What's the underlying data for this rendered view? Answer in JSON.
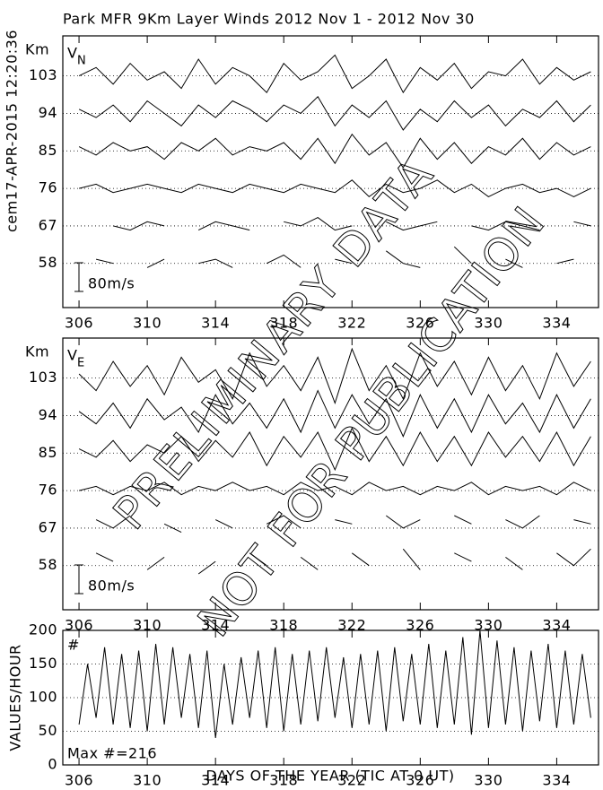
{
  "watermark": [
    "PRELIMINARY DATA",
    "NOT FOR PUBLICATION"
  ],
  "chart_data": [
    {
      "type": "line",
      "title": "Park MFR 9Km Layer Winds 2012 Nov  1 - 2012 Nov 30",
      "annotation": "cem17-APR-2015 12:20:36",
      "ylabel": "Km",
      "label": "V",
      "subscript": "N",
      "scale_label": "80m/s",
      "xlim": [
        305.05,
        336.45
      ],
      "xticks": [
        306,
        310,
        314,
        318,
        322,
        326,
        330,
        334
      ],
      "ylim": [
        47.4,
        112.6
      ],
      "yticks": [
        58,
        67,
        76,
        85,
        94,
        103
      ],
      "grid": true,
      "x": [
        306,
        307,
        308,
        309,
        310,
        311,
        312,
        313,
        314,
        315,
        316,
        317,
        318,
        319,
        320,
        321,
        322,
        323,
        324,
        325,
        326,
        327,
        328,
        329,
        330,
        331,
        332,
        333,
        334,
        335,
        336
      ],
      "series": [
        {
          "color": "#000000",
          "values": [
            103,
            105,
            101,
            106,
            102,
            104,
            100,
            107,
            101,
            105,
            103,
            99,
            106,
            102,
            104,
            108,
            100,
            103,
            107,
            99,
            105,
            102,
            106,
            100,
            104,
            103,
            107,
            101,
            105,
            102,
            104
          ]
        },
        {
          "color": "#000000",
          "values": [
            95,
            93,
            96,
            92,
            97,
            94,
            91,
            96,
            93,
            97,
            95,
            92,
            96,
            94,
            98,
            91,
            96,
            93,
            97,
            90,
            95,
            92,
            97,
            93,
            96,
            91,
            95,
            93,
            97,
            92,
            96
          ]
        },
        {
          "color": "#000000",
          "values": [
            86,
            84,
            87,
            85,
            86,
            83,
            87,
            85,
            88,
            84,
            86,
            85,
            87,
            83,
            88,
            82,
            89,
            84,
            87,
            81,
            88,
            83,
            87,
            82,
            86,
            84,
            88,
            83,
            87,
            84,
            86
          ]
        },
        {
          "color": "#000000",
          "values": [
            76,
            77,
            75,
            76,
            77,
            76,
            75,
            77,
            76,
            75,
            77,
            76,
            75,
            77,
            76,
            75,
            78,
            74,
            77,
            75,
            76,
            78,
            75,
            77,
            74,
            76,
            77,
            75,
            76,
            74,
            76
          ]
        },
        {
          "color": "#000000",
          "values": [
            68,
            null,
            67,
            66,
            68,
            67,
            null,
            66,
            68,
            67,
            66,
            null,
            68,
            67,
            69,
            66,
            67,
            null,
            68,
            66,
            67,
            68,
            null,
            67,
            66,
            68,
            67,
            66,
            null,
            68,
            67
          ]
        },
        {
          "color": "#000000",
          "values": [
            null,
            59,
            58,
            null,
            57,
            59,
            null,
            58,
            59,
            57,
            null,
            58,
            60,
            57,
            null,
            59,
            58,
            null,
            61,
            58,
            57,
            null,
            62,
            58,
            null,
            59,
            57,
            null,
            58,
            59,
            null
          ]
        }
      ]
    },
    {
      "type": "line",
      "ylabel": "Km",
      "label": "V",
      "subscript": "E",
      "scale_label": "80m/s",
      "xlim": [
        305.05,
        336.45
      ],
      "xticks": [
        306,
        310,
        314,
        318,
        322,
        326,
        330,
        334
      ],
      "ylim": [
        47.4,
        112.6
      ],
      "yticks": [
        58,
        67,
        76,
        85,
        94,
        103
      ],
      "grid": true,
      "x": [
        306,
        307,
        308,
        309,
        310,
        311,
        312,
        313,
        314,
        315,
        316,
        317,
        318,
        319,
        320,
        321,
        322,
        323,
        324,
        325,
        326,
        327,
        328,
        329,
        330,
        331,
        332,
        333,
        334,
        335,
        336
      ],
      "series": [
        {
          "color": "#000000",
          "values": [
            104,
            100,
            107,
            101,
            106,
            99,
            108,
            102,
            105,
            98,
            109,
            101,
            106,
            100,
            108,
            97,
            110,
            100,
            106,
            98,
            109,
            101,
            107,
            99,
            108,
            100,
            106,
            98,
            109,
            101,
            107
          ]
        },
        {
          "color": "#000000",
          "values": [
            95,
            92,
            97,
            91,
            98,
            93,
            96,
            90,
            99,
            92,
            97,
            91,
            98,
            90,
            100,
            91,
            99,
            92,
            98,
            89,
            99,
            91,
            98,
            90,
            99,
            92,
            97,
            90,
            99,
            91,
            98
          ]
        },
        {
          "color": "#000000",
          "values": [
            86,
            84,
            88,
            83,
            87,
            85,
            89,
            83,
            88,
            84,
            90,
            82,
            89,
            84,
            90,
            81,
            91,
            83,
            89,
            82,
            90,
            83,
            89,
            82,
            90,
            84,
            89,
            83,
            90,
            82,
            89
          ]
        },
        {
          "color": "#000000",
          "values": [
            76,
            77,
            75,
            77,
            76,
            78,
            75,
            77,
            76,
            78,
            76,
            77,
            75,
            78,
            76,
            77,
            75,
            78,
            76,
            77,
            75,
            77,
            76,
            78,
            75,
            77,
            76,
            77,
            75,
            78,
            76
          ]
        },
        {
          "color": "#000000",
          "values": [
            null,
            69,
            67,
            70,
            null,
            68,
            66,
            null,
            69,
            67,
            null,
            68,
            70,
            67,
            null,
            69,
            68,
            null,
            70,
            67,
            69,
            null,
            70,
            68,
            null,
            69,
            67,
            70,
            null,
            69,
            68
          ]
        },
        {
          "color": "#000000",
          "values": [
            null,
            61,
            59,
            null,
            57,
            60,
            null,
            56,
            59,
            null,
            61,
            58,
            null,
            60,
            57,
            null,
            61,
            58,
            null,
            62,
            57,
            null,
            61,
            59,
            null,
            60,
            57,
            null,
            61,
            58,
            62
          ]
        }
      ]
    },
    {
      "type": "line",
      "ylabel": "VALUES/HOUR",
      "label": "#",
      "annotation": "Max #=216",
      "xlabel": "DAYS OF THE YEAR (TIC AT 0 UT)",
      "xlim": [
        305.05,
        336.45
      ],
      "xticks": [
        306,
        310,
        314,
        318,
        322,
        326,
        330,
        334
      ],
      "ylim": [
        0,
        200
      ],
      "yticks": [
        0,
        50,
        100,
        150,
        200
      ],
      "grid": true,
      "x": [
        306,
        306.5,
        307,
        307.5,
        308,
        308.5,
        309,
        309.5,
        310,
        310.5,
        311,
        311.5,
        312,
        312.5,
        313,
        313.5,
        314,
        314.5,
        315,
        315.5,
        316,
        316.5,
        317,
        317.5,
        318,
        318.5,
        319,
        319.5,
        320,
        320.5,
        321,
        321.5,
        322,
        322.5,
        323,
        323.5,
        324,
        324.5,
        325,
        325.5,
        326,
        326.5,
        327,
        327.5,
        328,
        328.5,
        329,
        329.5,
        330,
        330.5,
        331,
        331.5,
        332,
        332.5,
        333,
        333.5,
        334,
        334.5,
        335,
        335.5,
        336
      ],
      "series": [
        {
          "color": "#000000",
          "values": [
            60,
            150,
            70,
            175,
            60,
            165,
            55,
            170,
            50,
            180,
            60,
            175,
            70,
            165,
            55,
            170,
            40,
            150,
            60,
            160,
            70,
            170,
            55,
            175,
            50,
            165,
            60,
            170,
            65,
            175,
            70,
            160,
            55,
            165,
            60,
            170,
            50,
            175,
            65,
            165,
            60,
            180,
            55,
            170,
            60,
            190,
            45,
            200,
            55,
            185,
            60,
            175,
            50,
            170,
            65,
            180,
            55,
            170,
            60,
            165,
            70
          ]
        }
      ]
    }
  ]
}
